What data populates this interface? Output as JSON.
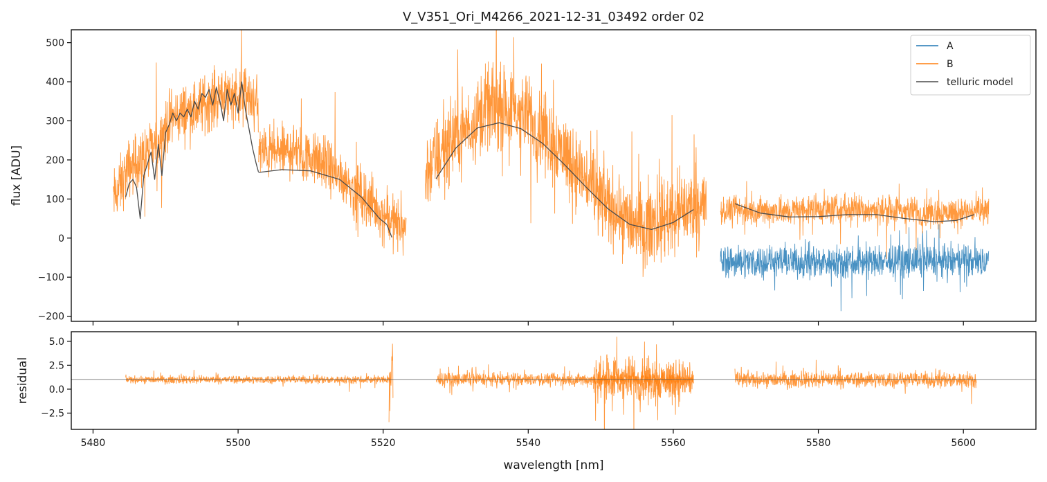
{
  "chart_data": [
    {
      "type": "line",
      "title": "V_V351_Ori_M4266_2021-12-31_03492  order 02",
      "xlabel": "",
      "ylabel": "flux [ADU]",
      "xlim": [
        5477,
        5610
      ],
      "ylim": [
        -213,
        533
      ],
      "yticks": [
        -200,
        -100,
        0,
        100,
        200,
        300,
        400,
        500
      ],
      "ytick_labels": [
        "−200",
        "−100",
        "0",
        "100",
        "200",
        "300",
        "400",
        "500"
      ],
      "xticks": [
        5480,
        5500,
        5520,
        5540,
        5560,
        5580,
        5600
      ],
      "legend_position": "top-right",
      "colors": {
        "A": "#1f77b4",
        "B": "#ff7f0e",
        "telluric": "#4a4a4a"
      },
      "series": [
        {
          "name": "A",
          "x_range": [
            5566.5,
            5603.5
          ],
          "mean": -60,
          "noise_amplitude": 60
        },
        {
          "name": "B",
          "segments": [
            {
              "x_range": [
                5482.8,
                5502.8
              ],
              "envelope_x": [
                5482.8,
                5485,
                5488,
                5491,
                5494,
                5497,
                5500,
                5502.8
              ],
              "envelope_y": [
                100,
                180,
                220,
                310,
                330,
                360,
                370,
                340
              ],
              "noise_amplitude": 110
            },
            {
              "x_range": [
                5502.8,
                5523.2
              ],
              "envelope_x": [
                5502.8,
                5508,
                5512,
                5516,
                5520,
                5523.2
              ],
              "envelope_y": [
                220,
                220,
                190,
                130,
                60,
                20
              ],
              "noise_amplitude": 100
            },
            {
              "x_range": [
                5525.8,
                5564.6
              ],
              "envelope_x": [
                5525.8,
                5530,
                5535,
                5540,
                5545,
                5550,
                5555,
                5560,
                5564.6
              ],
              "envelope_y": [
                170,
                260,
                340,
                310,
                220,
                100,
                30,
                60,
                90
              ],
              "noise_amplitude": 150
            },
            {
              "x_range": [
                5566.5,
                5603.5
              ],
              "envelope_x": [
                5566.5,
                5575,
                5585,
                5595,
                5603.5
              ],
              "envelope_y": [
                70,
                70,
                75,
                65,
                70
              ],
              "noise_amplitude": 55
            }
          ]
        },
        {
          "name": "telluric model",
          "segments": [
            {
              "x": [
                5484.5,
                5485.0,
                5485.5,
                5486.0,
                5486.5,
                5487.0,
                5487.5,
                5488.0,
                5488.5,
                5489.0,
                5489.5,
                5490.0,
                5490.5,
                5491.0,
                5491.5,
                5492.0,
                5492.5,
                5493.0,
                5493.5,
                5494.0,
                5494.5,
                5495.0,
                5495.5,
                5496.0,
                5496.5,
                5497.0,
                5497.5,
                5498.0,
                5498.5,
                5499.0,
                5499.5,
                5500.0,
                5500.5,
                5501.0,
                5501.5,
                5502.0,
                5502.5,
                5502.8
              ],
              "y": [
                105,
                140,
                150,
                130,
                50,
                160,
                190,
                220,
                150,
                240,
                160,
                270,
                290,
                320,
                300,
                320,
                310,
                330,
                310,
                350,
                330,
                370,
                360,
                380,
                340,
                385,
                350,
                300,
                380,
                340,
                370,
                320,
                400,
                330,
                280,
                230,
                190,
                170
              ]
            },
            {
              "x": [
                5502.8,
                5506,
                5510,
                5514,
                5517,
                5519.5,
                5520.5,
                5521.2
              ],
              "y": [
                168,
                175,
                172,
                150,
                105,
                50,
                35,
                2
              ]
            },
            {
              "x": [
                5527.3,
                5530,
                5533,
                5536,
                5539,
                5542,
                5545,
                5548,
                5551,
                5554,
                5557,
                5560,
                5562.8
              ],
              "y": [
                152,
                230,
                282,
                295,
                280,
                242,
                188,
                130,
                75,
                35,
                22,
                40,
                73
              ]
            },
            {
              "x": [
                5568.5,
                5572,
                5576,
                5580,
                5584,
                5588,
                5592,
                5596,
                5599,
                5601.5
              ],
              "y": [
                88,
                64,
                54,
                55,
                60,
                60,
                50,
                42,
                45,
                60
              ]
            }
          ]
        }
      ]
    },
    {
      "type": "line",
      "title": "",
      "xlabel": "wavelength [nm]",
      "ylabel": "residual",
      "xlim": [
        5477,
        5610
      ],
      "ylim": [
        -4.2,
        6.0
      ],
      "yticks": [
        -2.5,
        0.0,
        2.5,
        5.0
      ],
      "ytick_labels": [
        "−2.5",
        "0.0",
        "2.5",
        "5.0"
      ],
      "xticks": [
        5480,
        5500,
        5520,
        5540,
        5560,
        5580,
        5600
      ],
      "xtick_labels": [
        "5480",
        "5500",
        "5520",
        "5540",
        "5560",
        "5580",
        "5600"
      ],
      "reference_line": 1.0,
      "series": [
        {
          "name": "B residual",
          "segments": [
            {
              "x_range": [
                5484.5,
                5521.0
              ],
              "noise_amplitude": 0.6
            },
            {
              "x_range": [
                5520.8,
                5521.4
              ],
              "noise_amplitude": 9.0
            },
            {
              "x_range": [
                5527.3,
                5562.8
              ],
              "noise_amplitude": 1.0
            },
            {
              "x_range": [
                5549.0,
                5562.8
              ],
              "noise_amplitude": 3.5
            },
            {
              "x_range": [
                5568.5,
                5601.8
              ],
              "noise_amplitude": 1.2
            }
          ]
        }
      ]
    }
  ],
  "legend": {
    "items": [
      "A",
      "B",
      "telluric model"
    ]
  }
}
